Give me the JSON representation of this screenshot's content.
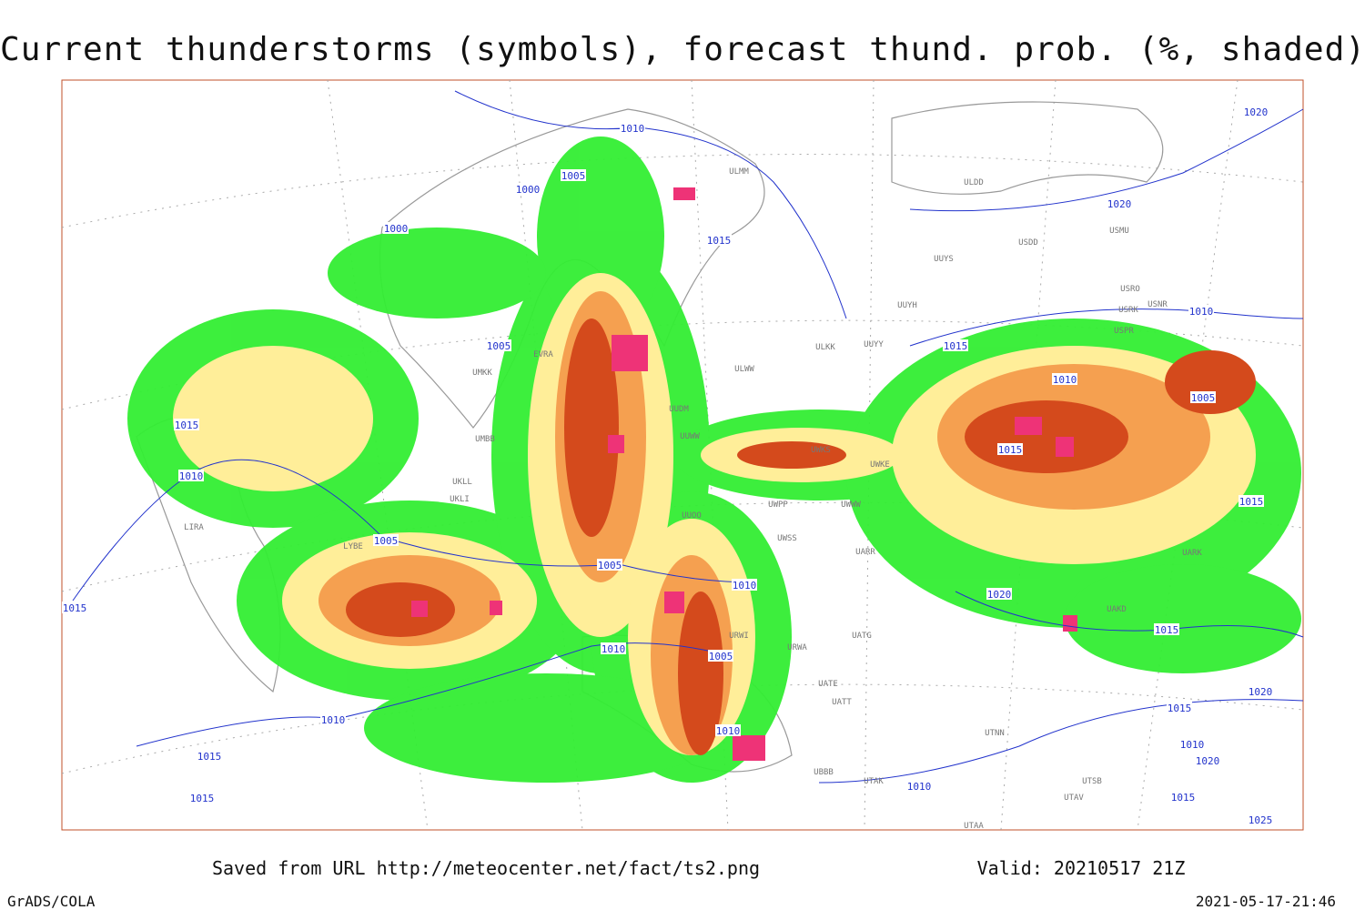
{
  "header": {
    "title": "Current thunderstorms (symbols), forecast thund. prob. (%, shaded)"
  },
  "footer": {
    "source": "Saved from URL http://meteocenter.net/fact/ts2.png",
    "valid": "Valid: 20210517 21Z",
    "software": "GrADS/COLA",
    "timestamp": "2021-05-17-21:46"
  },
  "isobar_labels": [
    "1010",
    "1005",
    "1000",
    "1000",
    "1015",
    "1020",
    "1020",
    "1010",
    "1015",
    "1010",
    "1005",
    "1015",
    "1015",
    "1005",
    "1015",
    "1010",
    "1005",
    "1005",
    "1015",
    "1010",
    "1005",
    "1010",
    "1020",
    "1015",
    "1010",
    "1015",
    "1015",
    "1010",
    "1010",
    "1020",
    "1015",
    "1010",
    "1020",
    "1015",
    "1025"
  ],
  "station_labels": [
    "ULMM",
    "ULDD",
    "USDD",
    "USMU",
    "UUYS",
    "USRO",
    "USRK",
    "USNR",
    "USPR",
    "UUYH",
    "ULKK",
    "UUYY",
    "ULWW",
    "UUDM",
    "UUWW",
    "UUOO",
    "UWPP",
    "UWWW",
    "UWSS",
    "UARR",
    "UWKE",
    "UWKS",
    "UARK",
    "UAKD",
    "UATG",
    "URWA",
    "URWI",
    "UATE",
    "UATT",
    "UTNN",
    "UTAK",
    "UBBB",
    "UTSB",
    "UTAV",
    "UTAA",
    "LIRA",
    "LYBE",
    "UKLL",
    "UKLI",
    "UMKK",
    "UMBB",
    "EVRA"
  ]
}
